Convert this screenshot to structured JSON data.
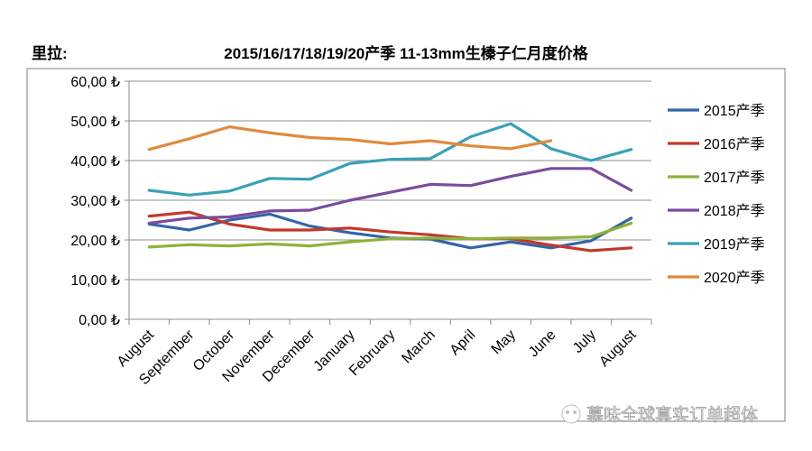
{
  "chart_data": {
    "type": "line",
    "unit_label": "里拉:",
    "title": "2015/16/17/18/19/20产季 11-13mm生榛子仁月度价格",
    "xlabel": "",
    "ylabel": "",
    "ylim": [
      0,
      60
    ],
    "yticks": [
      "0,00 ₺",
      "10,00 ₺",
      "20,00 ₺",
      "30,00 ₺",
      "40,00 ₺",
      "50,00 ₺",
      "60,00 ₺"
    ],
    "categories": [
      "August",
      "September",
      "October",
      "November",
      "December",
      "January",
      "February",
      "March",
      "April",
      "May",
      "June",
      "July",
      "August"
    ],
    "grid": "horizontal",
    "legend_position": "right",
    "series": [
      {
        "name": "2015产季",
        "color": "#3465A4",
        "values": [
          24.0,
          22.5,
          25.0,
          26.5,
          23.5,
          21.8,
          20.5,
          20.2,
          18.0,
          19.5,
          18.0,
          19.8,
          25.5
        ]
      },
      {
        "name": "2016产季",
        "color": "#C0392B",
        "values": [
          26.0,
          27.0,
          24.0,
          22.5,
          22.5,
          23.0,
          22.0,
          21.3,
          20.3,
          20.3,
          18.7,
          17.3,
          18.0
        ]
      },
      {
        "name": "2017产季",
        "color": "#8DB33A",
        "values": [
          18.2,
          18.8,
          18.5,
          19.0,
          18.5,
          19.5,
          20.3,
          20.5,
          20.3,
          20.5,
          20.5,
          20.8,
          24.2
        ]
      },
      {
        "name": "2018产季",
        "color": "#7B4B9E",
        "values": [
          24.2,
          25.5,
          25.8,
          27.3,
          27.5,
          30.0,
          32.0,
          34.0,
          33.7,
          36.0,
          38.0,
          38.0,
          32.5
        ]
      },
      {
        "name": "2019产季",
        "color": "#3AA0B8",
        "values": [
          32.5,
          31.3,
          32.3,
          35.5,
          35.3,
          39.3,
          40.3,
          40.5,
          46.0,
          49.3,
          43.0,
          40.0,
          42.8
        ]
      },
      {
        "name": "2020产季",
        "color": "#E08A3C",
        "values": [
          42.8,
          45.5,
          48.5,
          47.0,
          45.8,
          45.3,
          44.2,
          45.0,
          43.7,
          43.0,
          45.0,
          null,
          null
        ]
      }
    ]
  },
  "watermark": {
    "text": "慕味全球真实订单超体"
  }
}
